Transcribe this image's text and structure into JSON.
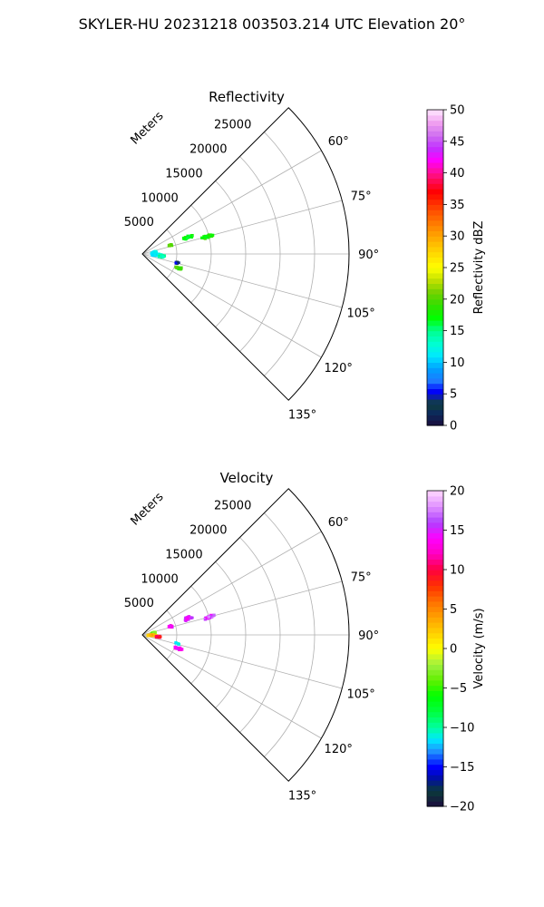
{
  "figure": {
    "title": "SKYLER-HU  20231218  003503.214 UTC Elevation 20°"
  },
  "chart_data": [
    {
      "type": "polar-sector",
      "title": "Reflectivity",
      "range_unit_label": "Meters",
      "range_ticks": [
        5000,
        10000,
        15000,
        20000,
        25000
      ],
      "range_tick_labels": [
        "5000",
        "10000",
        "15000",
        "20000",
        "25000"
      ],
      "r_max": 30000,
      "azimuth_range_deg": [
        45,
        135
      ],
      "azimuth_ticks": [
        60,
        75,
        90,
        105,
        120,
        135
      ],
      "azimuth_tick_labels": [
        "60°",
        "75°",
        "90°",
        "105°",
        "120°",
        "135°"
      ],
      "grid": true,
      "colorbar": {
        "label": "Reflectivity dBZ",
        "min": 0,
        "max": 50,
        "ticks": [
          0,
          5,
          10,
          15,
          20,
          25,
          30,
          35,
          40,
          45,
          50
        ],
        "tick_labels": [
          "0",
          "5",
          "10",
          "15",
          "20",
          "25",
          "30",
          "35",
          "40",
          "45",
          "50"
        ],
        "colormap": "NWSRef"
      },
      "echo_clusters": [
        {
          "az": 70,
          "r": 7000,
          "spread_az": 2.5,
          "spread_r": 900,
          "value": 17,
          "n": 40
        },
        {
          "az": 75,
          "r": 10000,
          "spread_az": 1.8,
          "spread_r": 1100,
          "value": 18,
          "n": 50
        },
        {
          "az": 73,
          "r": 4200,
          "spread_az": 3,
          "spread_r": 500,
          "value": 20,
          "n": 14
        },
        {
          "az": 84,
          "r": 1800,
          "spread_az": 6,
          "spread_r": 600,
          "value": 12,
          "n": 26
        },
        {
          "az": 93,
          "r": 2000,
          "spread_az": 5,
          "spread_r": 900,
          "value": 11,
          "n": 60
        },
        {
          "az": 96,
          "r": 2800,
          "spread_az": 4,
          "spread_r": 700,
          "value": 14,
          "n": 30
        },
        {
          "az": 104,
          "r": 5200,
          "spread_az": 2,
          "spread_r": 400,
          "value": 4,
          "n": 10
        },
        {
          "az": 111,
          "r": 5600,
          "spread_az": 2,
          "spread_r": 700,
          "value": 19,
          "n": 24
        }
      ]
    },
    {
      "type": "polar-sector",
      "title": "Velocity",
      "range_unit_label": "Meters",
      "range_ticks": [
        5000,
        10000,
        15000,
        20000,
        25000
      ],
      "range_tick_labels": [
        "5000",
        "10000",
        "15000",
        "20000",
        "25000"
      ],
      "r_max": 30000,
      "azimuth_range_deg": [
        45,
        135
      ],
      "azimuth_ticks": [
        60,
        75,
        90,
        105,
        120,
        135
      ],
      "azimuth_tick_labels": [
        "60°",
        "75°",
        "90°",
        "105°",
        "120°",
        "135°"
      ],
      "grid": true,
      "colorbar": {
        "label": "Velocity (m/s)",
        "min": -20,
        "max": 20,
        "ticks": [
          -20,
          -15,
          -10,
          -5,
          0,
          5,
          10,
          15,
          20
        ],
        "tick_labels": [
          "−20",
          "−15",
          "−10",
          "−5",
          "0",
          "5",
          "10",
          "15",
          "20"
        ],
        "colormap": "NWSVel"
      },
      "echo_clusters": [
        {
          "az": 70,
          "r": 7000,
          "spread_az": 2.5,
          "spread_r": 900,
          "value": 15,
          "n": 40
        },
        {
          "az": 75,
          "r": 10000,
          "spread_az": 1.8,
          "spread_r": 1100,
          "value": 16,
          "n": 50
        },
        {
          "az": 73,
          "r": 4200,
          "spread_az": 3,
          "spread_r": 500,
          "value": 14,
          "n": 14
        },
        {
          "az": 80,
          "r": 1700,
          "spread_az": 5,
          "spread_r": 600,
          "value": -2,
          "n": 26
        },
        {
          "az": 93,
          "r": 1500,
          "spread_az": 5,
          "spread_r": 800,
          "value": 3,
          "n": 70
        },
        {
          "az": 97,
          "r": 2300,
          "spread_az": 3,
          "spread_r": 500,
          "value": 10,
          "n": 30
        },
        {
          "az": 104,
          "r": 5200,
          "spread_az": 2,
          "spread_r": 400,
          "value": -12,
          "n": 10
        },
        {
          "az": 111,
          "r": 5600,
          "spread_az": 2,
          "spread_r": 700,
          "value": 14,
          "n": 20
        }
      ]
    }
  ]
}
